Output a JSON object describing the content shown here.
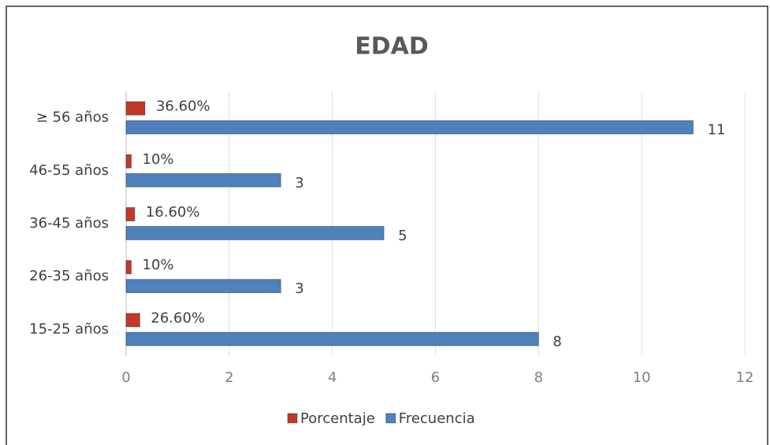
{
  "chart_data": {
    "type": "bar",
    "orientation": "horizontal",
    "title": "EDAD",
    "categories": [
      "≥ 56 años",
      "46-55 años",
      "36-45 años",
      "26-35 años",
      "15-25 años"
    ],
    "series": [
      {
        "name": "Porcentaje",
        "color": "#c0392b",
        "values": [
          0.366,
          0.1,
          0.166,
          0.1,
          0.266
        ],
        "value_labels": [
          "36.60%",
          "10%",
          "16.60%",
          "10%",
          "26.60%"
        ]
      },
      {
        "name": "Frecuencia",
        "color": "#4f81bd",
        "values": [
          11,
          3,
          5,
          3,
          8
        ]
      }
    ],
    "xlim": [
      0,
      12
    ],
    "xticks": [
      0,
      2,
      4,
      6,
      8,
      10,
      12
    ],
    "grid": true,
    "legend": "bottom"
  }
}
